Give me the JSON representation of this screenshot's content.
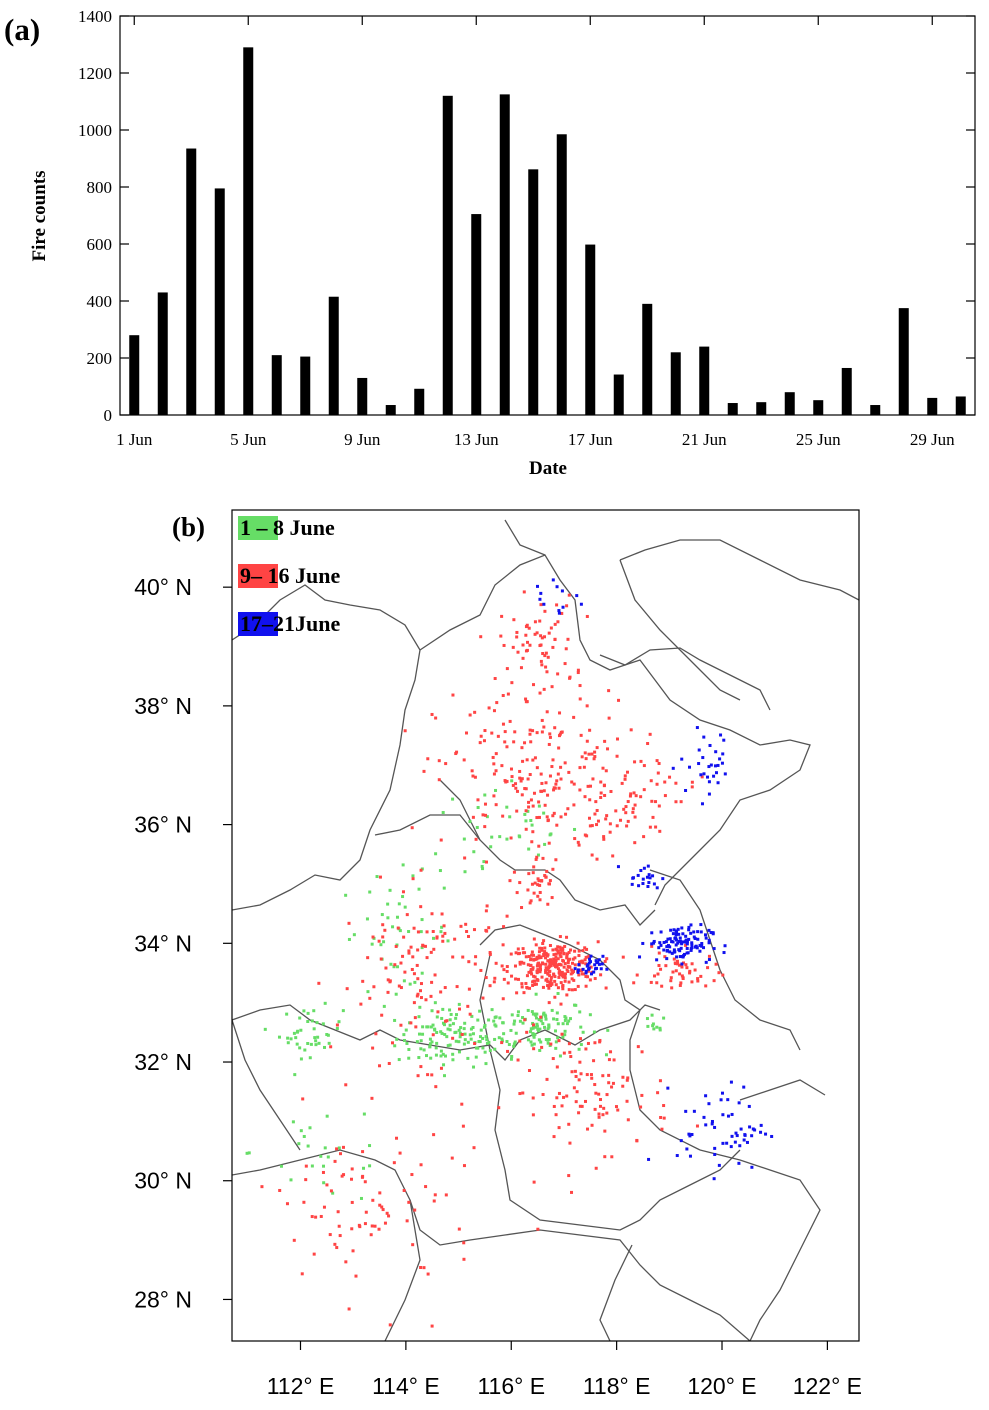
{
  "chart_data": [
    {
      "panel_label": "(a)",
      "type": "bar",
      "xlabel": "Date",
      "ylabel": "Fire counts",
      "ylim": [
        0,
        1400
      ],
      "yticks": [
        0,
        200,
        400,
        600,
        800,
        1000,
        1200,
        1400
      ],
      "xtick_labels": [
        {
          "day": 1,
          "label": "1 Jun"
        },
        {
          "day": 5,
          "label": "5 Jun"
        },
        {
          "day": 9,
          "label": "9 Jun"
        },
        {
          "day": 13,
          "label": "13 Jun"
        },
        {
          "day": 17,
          "label": "17 Jun"
        },
        {
          "day": 21,
          "label": "21 Jun"
        },
        {
          "day": 25,
          "label": "25 Jun"
        },
        {
          "day": 29,
          "label": "29 Jun"
        }
      ],
      "categories": [
        1,
        2,
        3,
        4,
        5,
        6,
        7,
        8,
        9,
        10,
        11,
        12,
        13,
        14,
        15,
        16,
        17,
        18,
        19,
        20,
        21,
        22,
        23,
        24,
        25,
        26,
        27,
        28,
        29,
        30
      ],
      "values": [
        280,
        430,
        935,
        795,
        1290,
        210,
        205,
        415,
        130,
        35,
        92,
        1120,
        705,
        1125,
        862,
        985,
        598,
        142,
        390,
        220,
        240,
        42,
        45,
        80,
        52,
        165,
        35,
        375,
        60,
        65
      ],
      "bar_color": "#000000",
      "grid": false
    },
    {
      "panel_label": "(b)",
      "type": "scatter",
      "legend": [
        {
          "label": "1 – 8  June",
          "color": "#66dd66"
        },
        {
          "label": "9– 16 June",
          "color": "#ff4444"
        },
        {
          "label": "17–21June",
          "color": "#1111ee"
        }
      ],
      "legend_position": "top-left",
      "xlim": [
        110.7,
        122.6
      ],
      "ylim": [
        27.3,
        41.3
      ],
      "lat_ticks": [
        {
          "value": 28,
          "label": "28° N"
        },
        {
          "value": 30,
          "label": "30° N"
        },
        {
          "value": 32,
          "label": "32° N"
        },
        {
          "value": 34,
          "label": "34° N"
        },
        {
          "value": 36,
          "label": "36° N"
        },
        {
          "value": 38,
          "label": "38° N"
        },
        {
          "value": 40,
          "label": "40° N"
        }
      ],
      "lon_ticks": [
        {
          "value": 112,
          "label": "112° E"
        },
        {
          "value": 114,
          "label": "114° E"
        },
        {
          "value": 116,
          "label": "116° E"
        },
        {
          "value": 118,
          "label": "118° E"
        },
        {
          "value": 120,
          "label": "120° E"
        },
        {
          "value": 122,
          "label": "122° E"
        }
      ],
      "fire_clusters": [
        {
          "period": "1 – 8  June",
          "center": [
            114.9,
            32.4
          ],
          "spread": [
            0.9,
            0.4
          ],
          "count": 120
        },
        {
          "period": "1 – 8  June",
          "center": [
            116.5,
            32.6
          ],
          "spread": [
            0.8,
            0.4
          ],
          "count": 110
        },
        {
          "period": "1 – 8  June",
          "center": [
            112.2,
            32.5
          ],
          "spread": [
            0.5,
            0.35
          ],
          "count": 40
        },
        {
          "period": "1 – 8  June",
          "center": [
            113.8,
            34.2
          ],
          "spread": [
            0.9,
            0.8
          ],
          "count": 45
        },
        {
          "period": "1 – 8  June",
          "center": [
            115.8,
            35.8
          ],
          "spread": [
            1.3,
            0.8
          ],
          "count": 40
        },
        {
          "period": "1 – 8  June",
          "center": [
            112.5,
            30.5
          ],
          "spread": [
            1.2,
            0.8
          ],
          "count": 25
        },
        {
          "period": "1 – 8  June",
          "center": [
            118.7,
            32.6
          ],
          "spread": [
            0.2,
            0.15
          ],
          "count": 10
        },
        {
          "period": "9– 16 June",
          "center": [
            116.8,
            33.6
          ],
          "spread": [
            0.7,
            0.35
          ],
          "count": 280
        },
        {
          "period": "9– 16 June",
          "center": [
            116.5,
            35.0
          ],
          "spread": [
            0.3,
            0.4
          ],
          "count": 35
        },
        {
          "period": "9– 16 June",
          "center": [
            116.5,
            36.8
          ],
          "spread": [
            1.6,
            1.2
          ],
          "count": 210
        },
        {
          "period": "9– 16 June",
          "center": [
            116.5,
            39.0
          ],
          "spread": [
            0.6,
            0.7
          ],
          "count": 70
        },
        {
          "period": "9– 16 June",
          "center": [
            117.5,
            31.5
          ],
          "spread": [
            1.3,
            0.9
          ],
          "count": 110
        },
        {
          "period": "9– 16 June",
          "center": [
            114.5,
            33.5
          ],
          "spread": [
            1.5,
            1.2
          ],
          "count": 140
        },
        {
          "period": "9– 16 June",
          "center": [
            113.3,
            29.5
          ],
          "spread": [
            1.8,
            1.3
          ],
          "count": 90
        },
        {
          "period": "9– 16 June",
          "center": [
            119.2,
            33.5
          ],
          "spread": [
            0.6,
            0.3
          ],
          "count": 50
        },
        {
          "period": "9– 16 June",
          "center": [
            118.3,
            36.5
          ],
          "spread": [
            1.0,
            0.6
          ],
          "count": 55
        },
        {
          "period": "17–21June",
          "center": [
            119.2,
            34.0
          ],
          "spread": [
            0.5,
            0.25
          ],
          "count": 110
        },
        {
          "period": "17–21June",
          "center": [
            117.5,
            33.6
          ],
          "spread": [
            0.2,
            0.15
          ],
          "count": 30
        },
        {
          "period": "17–21June",
          "center": [
            118.5,
            35.1
          ],
          "spread": [
            0.3,
            0.2
          ],
          "count": 20
        },
        {
          "period": "17–21June",
          "center": [
            119.8,
            37.0
          ],
          "spread": [
            0.5,
            0.5
          ],
          "count": 30
        },
        {
          "period": "17–21June",
          "center": [
            120.0,
            30.9
          ],
          "spread": [
            0.7,
            0.6
          ],
          "count": 55
        },
        {
          "period": "17–21June",
          "center": [
            116.8,
            39.8
          ],
          "spread": [
            0.5,
            0.4
          ],
          "count": 12
        }
      ]
    }
  ]
}
